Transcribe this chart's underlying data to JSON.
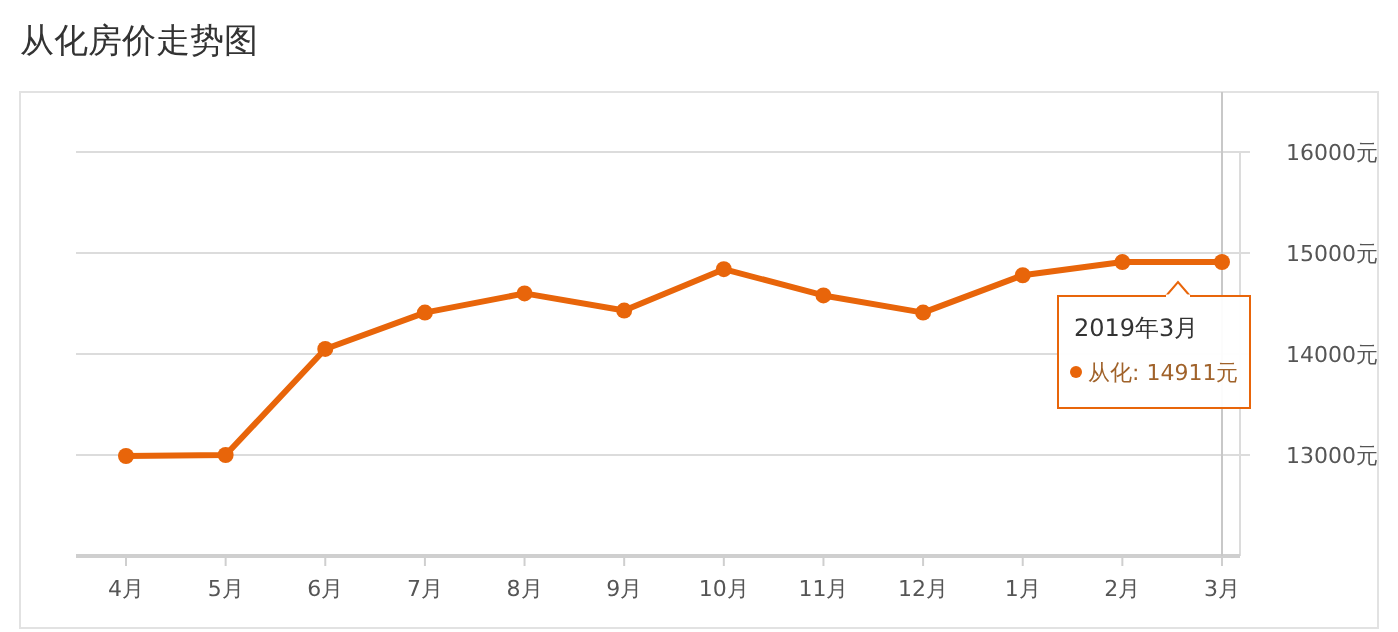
{
  "chart_data": {
    "type": "line",
    "title": "从化房价走势图",
    "categories": [
      "4月",
      "5月",
      "6月",
      "7月",
      "8月",
      "9月",
      "10月",
      "11月",
      "12月",
      "1月",
      "2月",
      "3月"
    ],
    "series": [
      {
        "color": "#e8650a",
        "values": [
          12990,
          13000,
          14050,
          14410,
          14600,
          14430,
          14840,
          14580,
          14410,
          14780,
          14910,
          14911
        ]
      }
    ],
    "ylim": [
      12000,
      16000
    ],
    "yticks": [
      {
        "value": 13000,
        "label": "13000元"
      },
      {
        "value": 14000,
        "label": "14000元"
      },
      {
        "value": 15000,
        "label": "15000元"
      },
      {
        "value": 16000,
        "label": "16000元"
      }
    ],
    "grid": "y",
    "marker": "circle",
    "ref_lines": [
      {
        "axis": "x",
        "value": "3月",
        "color": "#c8c8c8"
      }
    ],
    "annotations": [
      "2019年3月",
      "从化:  14911元"
    ]
  }
}
